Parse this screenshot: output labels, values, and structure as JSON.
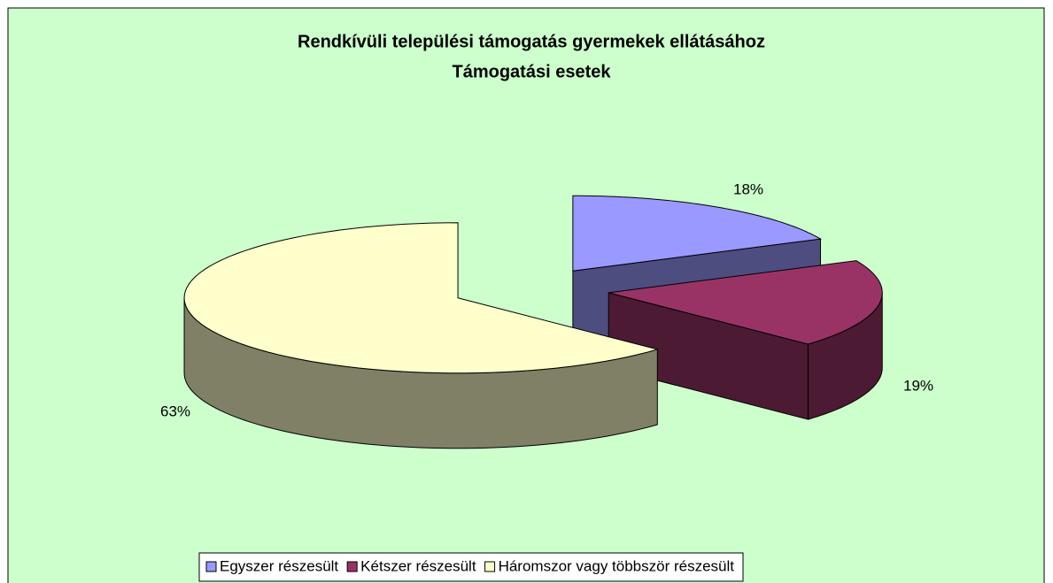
{
  "chart_data": {
    "type": "pie",
    "title": "Rendkívüli települési támogatás gyermekek ellátásához",
    "subtitle": "Támogatási esetek",
    "categories": [
      "Egyszer részesült",
      "Kétszer részesült",
      "Háromszor vagy többször részesült"
    ],
    "values": [
      18,
      19,
      63
    ],
    "value_labels": [
      "18%",
      "19%",
      "63%"
    ],
    "colors": [
      "#9999ff",
      "#993366",
      "#ffffcc"
    ],
    "legend": "bottom"
  }
}
